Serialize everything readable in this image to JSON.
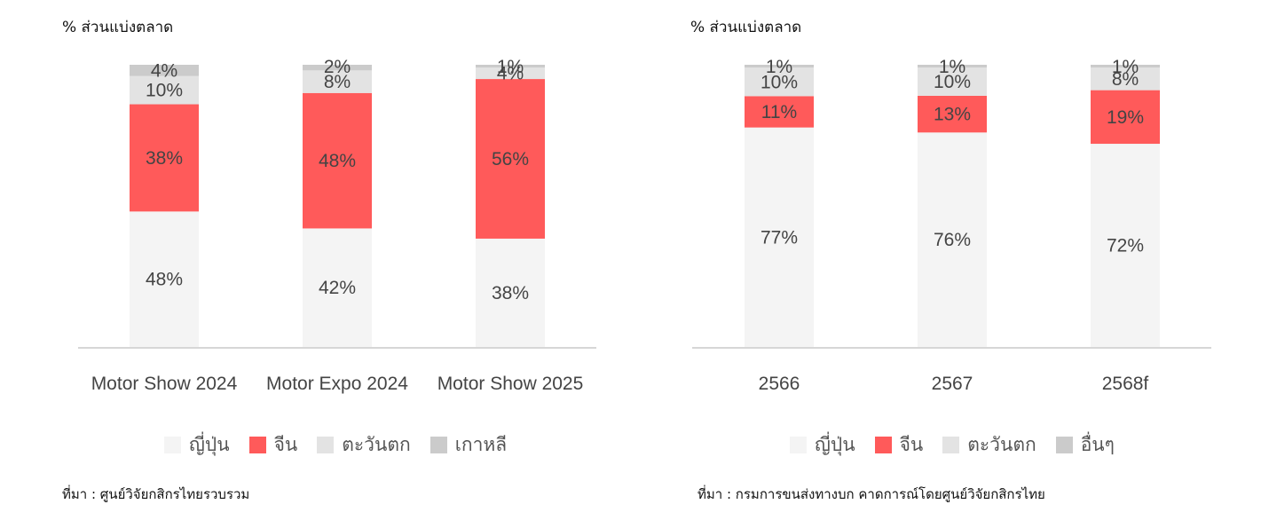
{
  "chart_data": [
    {
      "type": "bar",
      "stacked": true,
      "ylabel": "% ส่วนแบ่งตลาด",
      "categories": [
        "Motor Show 2024",
        "Motor Expo 2024",
        "Motor Show 2025"
      ],
      "series": [
        {
          "name": "ญี่ปุ่น",
          "color": "#f4f4f4",
          "values": [
            48,
            42,
            38
          ]
        },
        {
          "name": "จีน",
          "color": "#ff5a5a",
          "values": [
            38,
            48,
            56
          ]
        },
        {
          "name": "ตะวันตก",
          "color": "#e3e3e3",
          "values": [
            10,
            8,
            4
          ]
        },
        {
          "name": "เกาหลี",
          "color": "#cbcbcb",
          "values": [
            4,
            2,
            1
          ]
        }
      ],
      "value_suffix": "%",
      "ylim": [
        0,
        100
      ],
      "grid": false,
      "legend": "bottom",
      "source": "ที่มา : ศูนย์วิจัยกสิกรไทยรวบรวม"
    },
    {
      "type": "bar",
      "stacked": true,
      "ylabel": "% ส่วนแบ่งตลาด",
      "categories": [
        "2566",
        "2567",
        "2568f"
      ],
      "series": [
        {
          "name": "ญี่ปุ่น",
          "color": "#f4f4f4",
          "values": [
            77,
            76,
            72
          ]
        },
        {
          "name": "จีน",
          "color": "#ff5a5a",
          "values": [
            11,
            13,
            19
          ]
        },
        {
          "name": "ตะวันตก",
          "color": "#e3e3e3",
          "values": [
            10,
            10,
            8
          ]
        },
        {
          "name": "อื่นๆ",
          "color": "#cbcbcb",
          "values": [
            1,
            1,
            1
          ]
        }
      ],
      "value_suffix": "%",
      "ylim": [
        0,
        100
      ],
      "grid": false,
      "legend": "bottom",
      "source": "ที่มา : กรมการขนส่งทางบก คาดการณ์โดยศูนย์วิจัยกสิกรไทย"
    }
  ]
}
